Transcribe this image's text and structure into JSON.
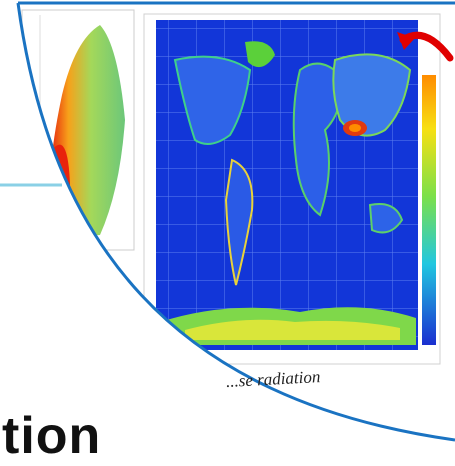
{
  "slide": {
    "caption": "...se radiation",
    "title_fragment": "tion"
  },
  "colors": {
    "frame_outline": "#1a73c2",
    "accent_line": "#8ad0e6",
    "arrow": "#e00000",
    "map_ocean": "#1236d8",
    "scale_top": "#ff8c00",
    "scale_mid": "#7be04a",
    "scale_bottom": "#1b2fd0"
  }
}
